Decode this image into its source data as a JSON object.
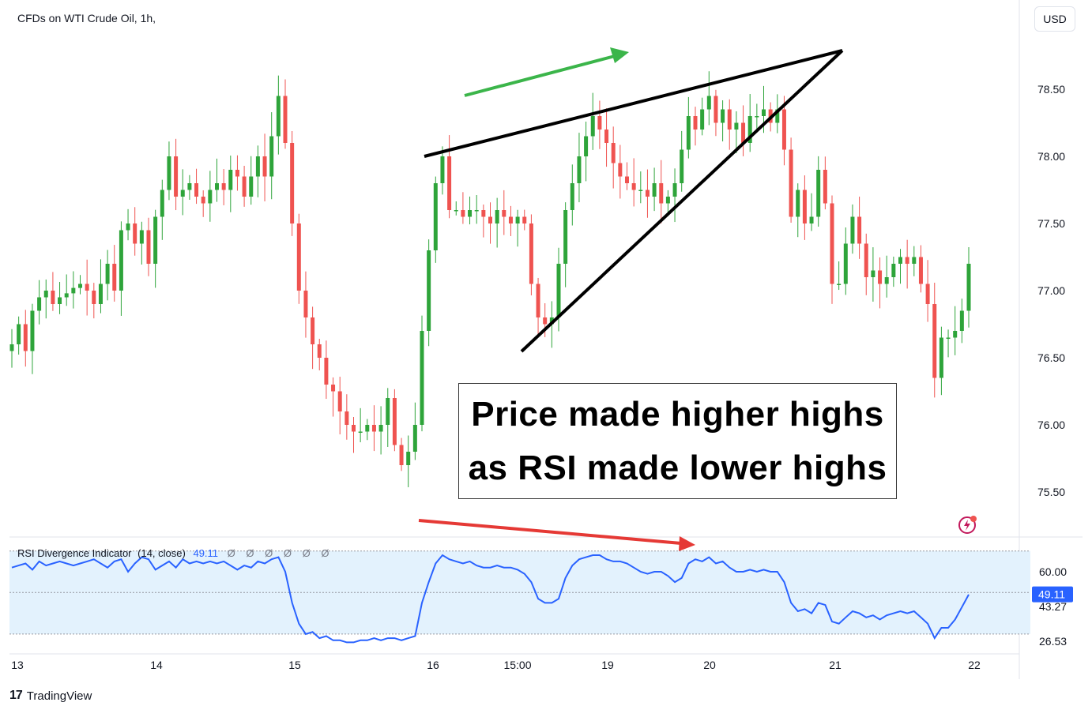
{
  "header": {
    "symbol_title": "CFDs on WTI Crude Oil, 1h,",
    "currency_button": "USD"
  },
  "callout": {
    "line1": "Price made higher highs",
    "line2": "as RSI made lower highs"
  },
  "footer": {
    "brand": "TradingView",
    "logo": "17"
  },
  "rsi_legend": {
    "name": "RSI Divergence Indicator",
    "params": "(14, close)",
    "value": "49.11",
    "flags": [
      "Ø",
      "Ø",
      "Ø",
      "Ø",
      "Ø",
      "Ø"
    ]
  },
  "colors": {
    "up": "#26a69a",
    "up_green": "#2ea43a",
    "down": "#ef5350",
    "rsi_line": "#2962ff",
    "rsi_band": "#e3f2fd",
    "arrow_green": "#3bb54a",
    "arrow_red": "#e53935",
    "bolt": "#c2185b"
  },
  "chart_data": [
    {
      "type": "candlestick",
      "title": "CFDs on WTI Crude Oil, 1h,",
      "y_ticks": [
        "78.50",
        "78.00",
        "77.50",
        "77.00",
        "76.50",
        "76.00",
        "75.50"
      ],
      "ylim": [
        75.25,
        78.85
      ],
      "x_ticks": [
        "13",
        "14",
        "15",
        "16",
        "15:00",
        "19",
        "20",
        "21",
        "22"
      ],
      "closes": [
        76.6,
        76.75,
        76.55,
        76.85,
        76.95,
        77.0,
        76.9,
        76.95,
        76.98,
        77.02,
        77.05,
        77.0,
        76.9,
        77.05,
        77.2,
        77.0,
        77.45,
        77.5,
        77.35,
        77.45,
        77.2,
        77.55,
        77.75,
        78.0,
        77.7,
        77.75,
        77.8,
        77.7,
        77.65,
        77.75,
        77.8,
        77.75,
        77.9,
        77.85,
        77.7,
        77.85,
        78.0,
        77.85,
        78.15,
        78.45,
        78.1,
        77.5,
        77.0,
        76.8,
        76.6,
        76.5,
        76.3,
        76.25,
        76.1,
        76.0,
        75.95,
        75.95,
        76.0,
        75.95,
        76.0,
        76.2,
        75.85,
        75.7,
        75.8,
        76.0,
        76.7,
        77.3,
        77.8,
        78.0,
        77.6,
        77.6,
        77.55,
        77.6,
        77.6,
        77.55,
        77.5,
        77.6,
        77.55,
        77.5,
        77.55,
        77.5,
        77.05,
        76.8,
        76.75,
        76.8,
        77.2,
        77.6,
        77.8,
        78.0,
        78.15,
        78.3,
        78.2,
        78.1,
        77.95,
        77.85,
        77.8,
        77.75,
        77.75,
        77.7,
        77.8,
        77.65,
        77.7,
        77.8,
        78.05,
        78.3,
        78.2,
        78.35,
        78.45,
        78.25,
        78.35,
        78.2,
        78.25,
        78.1,
        78.3,
        78.3,
        78.35,
        78.25,
        78.35,
        78.05,
        77.55,
        77.75,
        77.5,
        77.55,
        77.9,
        77.65,
        77.05,
        77.05,
        77.35,
        77.55,
        77.35,
        77.1,
        77.15,
        77.05,
        77.1,
        77.2,
        77.25,
        77.2,
        77.25,
        77.05,
        76.9,
        76.35,
        76.65,
        76.65,
        76.7,
        76.85,
        77.2
      ],
      "highs_extreme": {
        "max": 78.75,
        "min": 75.5
      }
    },
    {
      "type": "line",
      "name": "RSI Divergence Indicator (14, close)",
      "current_value": "49.11",
      "y_ticks": [
        "60.00",
        "43.27",
        "26.53"
      ],
      "value_badge": "49.11",
      "band": [
        30,
        70
      ],
      "ylim": [
        24,
        72
      ],
      "values": [
        62,
        63,
        64,
        61,
        65,
        63,
        64,
        65,
        64,
        63,
        64,
        65,
        66,
        64,
        62,
        65,
        66,
        60,
        64,
        67,
        66,
        61,
        63,
        65,
        62,
        66,
        64,
        65,
        64,
        65,
        64,
        65,
        63,
        61,
        63,
        62,
        65,
        64,
        66,
        67,
        60,
        45,
        35,
        30,
        31,
        28,
        29,
        27,
        27,
        26,
        26,
        27,
        27,
        28,
        27,
        28,
        28,
        27,
        28,
        29,
        45,
        55,
        64,
        68,
        66,
        65,
        64,
        65,
        63,
        62,
        62,
        63,
        62,
        62,
        61,
        59,
        55,
        47,
        45,
        45,
        47,
        57,
        63,
        66,
        67,
        68,
        68,
        66,
        65,
        65,
        64,
        62,
        60,
        59,
        60,
        60,
        58,
        55,
        57,
        64,
        66,
        65,
        67,
        64,
        65,
        62,
        60,
        60,
        61,
        60,
        61,
        60,
        60,
        55,
        45,
        41,
        42,
        40,
        45,
        44,
        36,
        35,
        38,
        41,
        40,
        38,
        39,
        37,
        39,
        40,
        41,
        40,
        41,
        38,
        35,
        28,
        33,
        33,
        37,
        43,
        49
      ]
    }
  ]
}
